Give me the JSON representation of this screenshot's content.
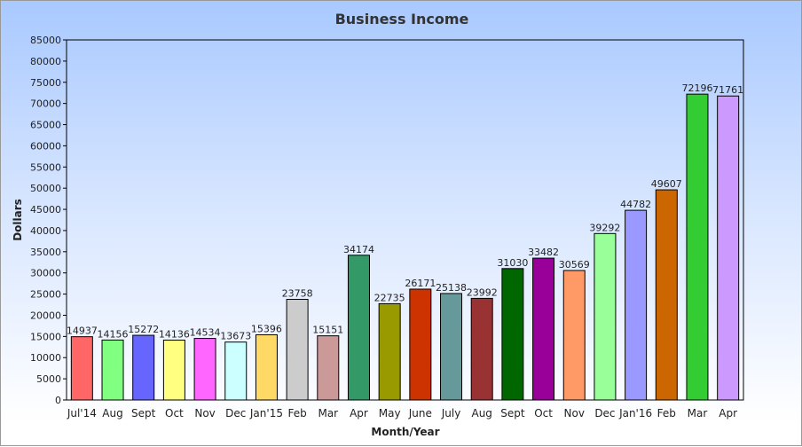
{
  "chart_data": {
    "type": "bar",
    "title": "Business Income",
    "xlabel": "Month/Year",
    "ylabel": "Dollars",
    "ylim": [
      0,
      85000
    ],
    "ytick_step": 5000,
    "grid": false,
    "categories": [
      "Jul'14",
      "Aug",
      "Sept",
      "Oct",
      "Nov",
      "Dec",
      "Jan'15",
      "Feb",
      "Mar",
      "Apr",
      "May",
      "June",
      "July",
      "Aug",
      "Sept",
      "Oct",
      "Nov",
      "Dec",
      "Jan'16",
      "Feb",
      "Mar",
      "Apr"
    ],
    "values": [
      14937,
      14156,
      15272,
      14136,
      14534,
      13673,
      15396,
      23758,
      15151,
      34174,
      22735,
      26171,
      25138,
      23992,
      31030,
      33482,
      30569,
      39292,
      44782,
      49607,
      72196,
      71761
    ],
    "colors": [
      "#ff6666",
      "#80ff80",
      "#6666ff",
      "#ffff80",
      "#ff66ff",
      "#ccffff",
      "#ffd966",
      "#cccccc",
      "#cc9999",
      "#339966",
      "#999900",
      "#cc3300",
      "#669999",
      "#993333",
      "#006600",
      "#990099",
      "#ff9966",
      "#99ff99",
      "#9999ff",
      "#cc6600",
      "#33cc33",
      "#cc99ff"
    ]
  }
}
